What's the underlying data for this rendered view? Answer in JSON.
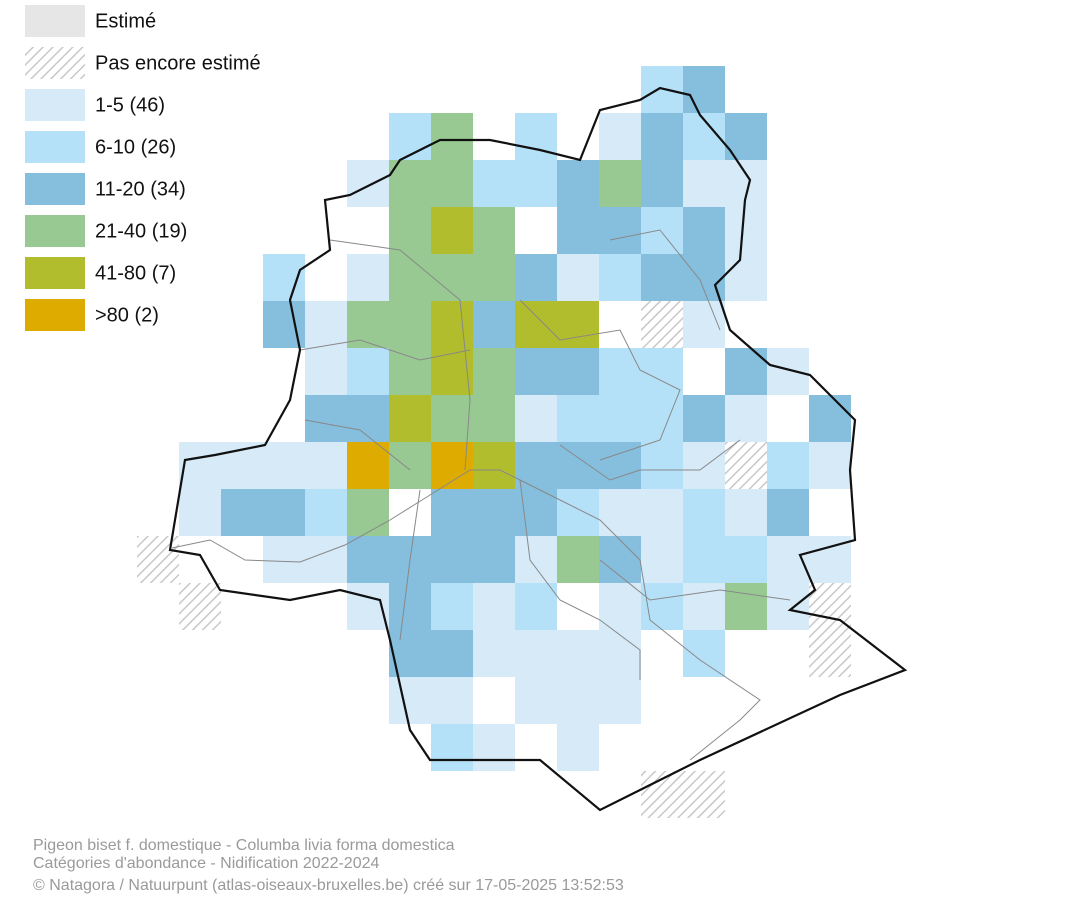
{
  "legend": [
    {
      "label": "Estimé",
      "color": "#e6e6e6"
    },
    {
      "label": "Pas encore estimé",
      "color": "hatch"
    },
    {
      "label": "1-5 (46)",
      "color": "#d6eaf8"
    },
    {
      "label": "6-10 (26)",
      "color": "#b5e1f8"
    },
    {
      "label": "11-20 (34)",
      "color": "#86bfdd"
    },
    {
      "label": "21-40 (19)",
      "color": "#98c993"
    },
    {
      "label": "41-80 (7)",
      "color": "#b2bd2d"
    },
    {
      "label": ">80 (2)",
      "color": "#deab00"
    }
  ],
  "footer": {
    "species": "Pigeon biset f. domestique - Columba livia forma domestica",
    "subtitle": "Catégories d'abondance - Nidification 2022-2024",
    "credit": "© Natagora / Natuurpunt (atlas-oiseaux-bruxelles.be) créé sur 17-05-2025 13:52:53"
  }
}
